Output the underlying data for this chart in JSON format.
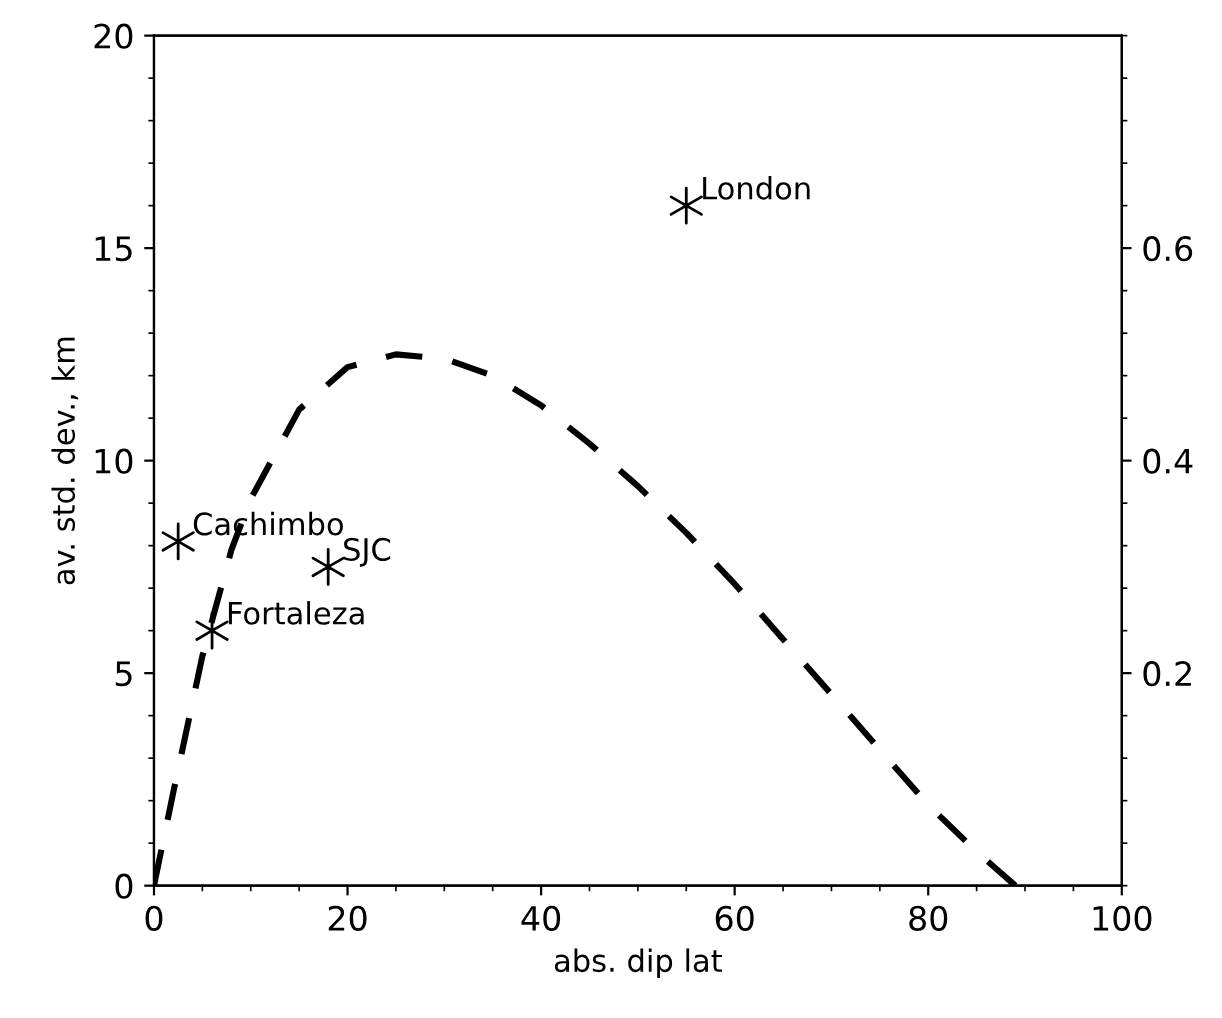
{
  "chart_data": {
    "type": "scatter",
    "xlabel": "abs. dip lat",
    "ylabel": "av. std. dev., km",
    "xlim": [
      0,
      100
    ],
    "xticks": [
      0,
      20,
      40,
      60,
      80,
      100
    ],
    "ylim": [
      0,
      20
    ],
    "yticks": [
      0,
      5,
      10,
      15,
      20
    ],
    "y2lim": [
      0,
      0.8
    ],
    "y2ticks": [
      0.2,
      0.4,
      0.6
    ],
    "grid": false,
    "legend": false,
    "series": [
      {
        "color": "#000000",
        "marker": "cross",
        "x": [
          2.5,
          6,
          18,
          55
        ],
        "values": [
          8.1,
          6.0,
          7.5,
          16.0
        ]
      },
      {
        "type": "line",
        "color": "#000000",
        "line_style": "dashed",
        "marker": "none",
        "x": [
          0,
          2,
          5,
          8,
          10,
          15,
          20,
          25,
          30,
          35,
          40,
          45,
          50,
          55,
          60,
          65,
          70,
          75,
          80,
          85,
          89
        ],
        "values": [
          0,
          2.2,
          5.4,
          7.9,
          9.1,
          11.2,
          12.2,
          12.5,
          12.4,
          12.0,
          11.3,
          10.4,
          9.4,
          8.3,
          7.1,
          5.8,
          4.5,
          3.2,
          1.9,
          0.8,
          0
        ]
      }
    ],
    "annotations": [
      {
        "text": "Cachimbo",
        "x": 2.5,
        "y": 8.1
      },
      {
        "text": "Fortaleza",
        "x": 6,
        "y": 6.0
      },
      {
        "text": "SJC",
        "x": 18,
        "y": 7.5
      },
      {
        "text": "London",
        "x": 55,
        "y": 16.0
      }
    ]
  }
}
